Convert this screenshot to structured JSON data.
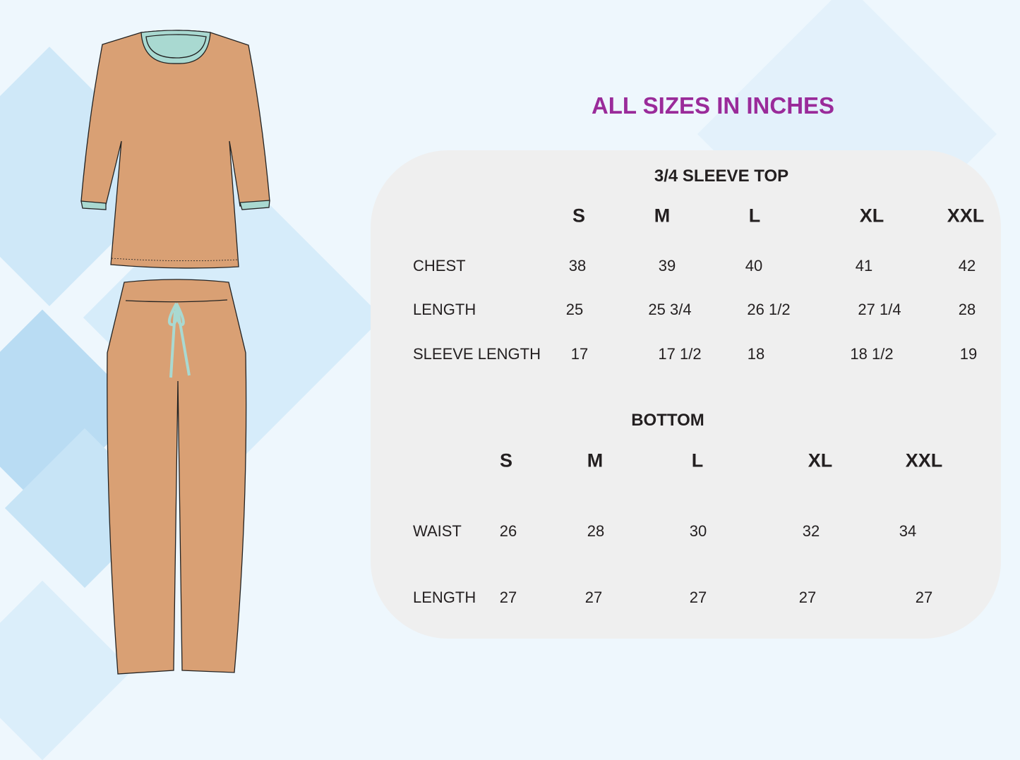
{
  "title": "ALL SIZES IN  INCHES",
  "colors": {
    "title": "#9a2b9a",
    "garment": "#d9a074",
    "trim": "#a9d9d1",
    "panel": "#efefef",
    "background": "#eef7fd"
  },
  "top": {
    "heading": "3/4 SLEEVE TOP",
    "sizes": [
      "S",
      "M",
      "L",
      "XL",
      "XXL"
    ],
    "rows": [
      {
        "label": "CHEST",
        "values": [
          "38",
          "39",
          "40",
          "41",
          "42"
        ]
      },
      {
        "label": "LENGTH",
        "values": [
          "25",
          "25 3/4",
          "26 1/2",
          "27 1/4",
          "28"
        ]
      },
      {
        "label": "SLEEVE LENGTH",
        "values": [
          "17",
          "17 1/2",
          "18",
          "18 1/2",
          "19"
        ]
      }
    ]
  },
  "bottom": {
    "heading": "BOTTOM",
    "sizes": [
      "S",
      "M",
      "L",
      "XL",
      "XXL"
    ],
    "rows": [
      {
        "label": "WAIST",
        "values": [
          "26",
          "28",
          "30",
          "32",
          "34"
        ]
      },
      {
        "label": "LENGTH",
        "values": [
          "27",
          "27",
          "27",
          "27",
          "27"
        ]
      }
    ]
  }
}
